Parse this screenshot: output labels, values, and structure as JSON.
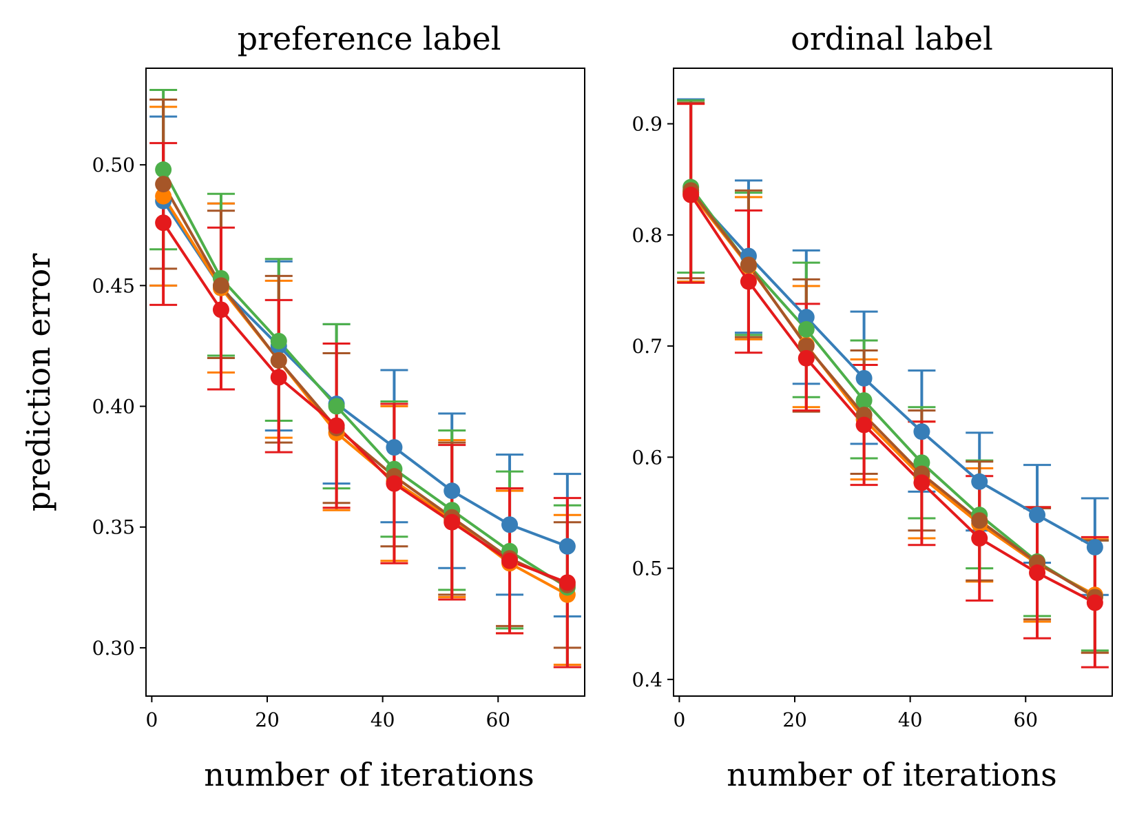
{
  "figure_colors": [
    "#377eb8",
    "#ff7f00",
    "#4daf4a",
    "#a65628",
    "#e41a1c"
  ],
  "chart_data": [
    {
      "type": "line",
      "title": "preference label",
      "xlabel": "number of iterations",
      "ylabel": "prediction error",
      "x": [
        2,
        12,
        22,
        32,
        42,
        52,
        62,
        72
      ],
      "xlim": [
        -1,
        75
      ],
      "ylim": [
        0.28,
        0.54
      ],
      "xticks": [
        0,
        20,
        40,
        60
      ],
      "xtick_labels": [
        "0",
        "20",
        "40",
        "60"
      ],
      "yticks": [
        0.3,
        0.35,
        0.4,
        0.45,
        0.5
      ],
      "ytick_labels": [
        "0.30",
        "0.35",
        "0.40",
        "0.45",
        "0.50"
      ],
      "legend": "none",
      "series": [
        {
          "color": "#377eb8",
          "values": [
            0.485,
            0.449,
            0.425,
            0.401,
            0.383,
            0.365,
            0.351,
            0.342
          ],
          "err_low": [
            0.45,
            0.414,
            0.39,
            0.368,
            0.352,
            0.333,
            0.322,
            0.313
          ],
          "err_high": [
            0.52,
            0.484,
            0.46,
            0.434,
            0.415,
            0.397,
            0.38,
            0.372
          ]
        },
        {
          "color": "#ff7f00",
          "values": [
            0.487,
            0.449,
            0.419,
            0.389,
            0.369,
            0.353,
            0.335,
            0.322
          ],
          "err_low": [
            0.45,
            0.414,
            0.387,
            0.357,
            0.336,
            0.321,
            0.306,
            0.293
          ],
          "err_high": [
            0.524,
            0.484,
            0.452,
            0.422,
            0.4,
            0.386,
            0.365,
            0.355
          ]
        },
        {
          "color": "#4daf4a",
          "values": [
            0.498,
            0.453,
            0.427,
            0.4,
            0.374,
            0.357,
            0.34,
            0.325
          ],
          "err_low": [
            0.465,
            0.421,
            0.394,
            0.366,
            0.346,
            0.324,
            0.308,
            0.292
          ],
          "err_high": [
            0.531,
            0.488,
            0.461,
            0.434,
            0.402,
            0.39,
            0.373,
            0.359
          ]
        },
        {
          "color": "#a65628",
          "values": [
            0.492,
            0.45,
            0.419,
            0.391,
            0.371,
            0.354,
            0.337,
            0.326
          ],
          "err_low": [
            0.457,
            0.42,
            0.385,
            0.36,
            0.342,
            0.322,
            0.309,
            0.3
          ],
          "err_high": [
            0.527,
            0.481,
            0.454,
            0.422,
            0.401,
            0.385,
            0.366,
            0.352
          ]
        },
        {
          "color": "#e41a1c",
          "values": [
            0.476,
            0.44,
            0.412,
            0.392,
            0.368,
            0.352,
            0.336,
            0.327
          ],
          "err_low": [
            0.442,
            0.407,
            0.381,
            0.358,
            0.335,
            0.32,
            0.306,
            0.292
          ],
          "err_high": [
            0.509,
            0.474,
            0.444,
            0.426,
            0.401,
            0.384,
            0.366,
            0.362
          ]
        }
      ]
    },
    {
      "type": "line",
      "title": "ordinal label",
      "xlabel": "number of iterations",
      "ylabel": "",
      "x": [
        2,
        12,
        22,
        32,
        42,
        52,
        62,
        72
      ],
      "xlim": [
        -1,
        75
      ],
      "ylim": [
        0.385,
        0.95
      ],
      "xticks": [
        0,
        20,
        40,
        60
      ],
      "xtick_labels": [
        "0",
        "20",
        "40",
        "60"
      ],
      "yticks": [
        0.4,
        0.5,
        0.6,
        0.7,
        0.8,
        0.9
      ],
      "ytick_labels": [
        "0.4",
        "0.5",
        "0.6",
        "0.7",
        "0.8",
        "0.9"
      ],
      "legend": "none",
      "series": [
        {
          "color": "#377eb8",
          "values": [
            0.838,
            0.781,
            0.726,
            0.671,
            0.623,
            0.578,
            0.548,
            0.519
          ],
          "err_low": [
            0.758,
            0.712,
            0.666,
            0.612,
            0.569,
            0.534,
            0.505,
            0.476
          ],
          "err_high": [
            0.922,
            0.849,
            0.786,
            0.731,
            0.678,
            0.622,
            0.593,
            0.563
          ]
        },
        {
          "color": "#ff7f00",
          "values": [
            0.838,
            0.772,
            0.701,
            0.634,
            0.582,
            0.54,
            0.504,
            0.476
          ],
          "err_low": [
            0.758,
            0.706,
            0.645,
            0.58,
            0.527,
            0.488,
            0.452,
            0.424
          ],
          "err_high": [
            0.918,
            0.834,
            0.754,
            0.688,
            0.632,
            0.59,
            0.555,
            0.526
          ]
        },
        {
          "color": "#4daf4a",
          "values": [
            0.843,
            0.773,
            0.715,
            0.651,
            0.595,
            0.548,
            0.506,
            0.474
          ],
          "err_low": [
            0.766,
            0.71,
            0.654,
            0.599,
            0.545,
            0.5,
            0.457,
            0.426
          ],
          "err_high": [
            0.921,
            0.838,
            0.775,
            0.705,
            0.645,
            0.597,
            0.555,
            0.525
          ]
        },
        {
          "color": "#a65628",
          "values": [
            0.84,
            0.773,
            0.7,
            0.638,
            0.585,
            0.543,
            0.505,
            0.474
          ],
          "err_low": [
            0.761,
            0.708,
            0.641,
            0.585,
            0.534,
            0.489,
            0.454,
            0.424
          ],
          "err_high": [
            0.919,
            0.84,
            0.76,
            0.696,
            0.642,
            0.596,
            0.554,
            0.525
          ]
        },
        {
          "color": "#e41a1c",
          "values": [
            0.836,
            0.758,
            0.689,
            0.629,
            0.577,
            0.527,
            0.496,
            0.469
          ],
          "err_low": [
            0.757,
            0.694,
            0.642,
            0.575,
            0.521,
            0.471,
            0.437,
            0.411
          ],
          "err_high": [
            0.918,
            0.822,
            0.738,
            0.683,
            0.632,
            0.583,
            0.555,
            0.528
          ]
        }
      ]
    }
  ]
}
